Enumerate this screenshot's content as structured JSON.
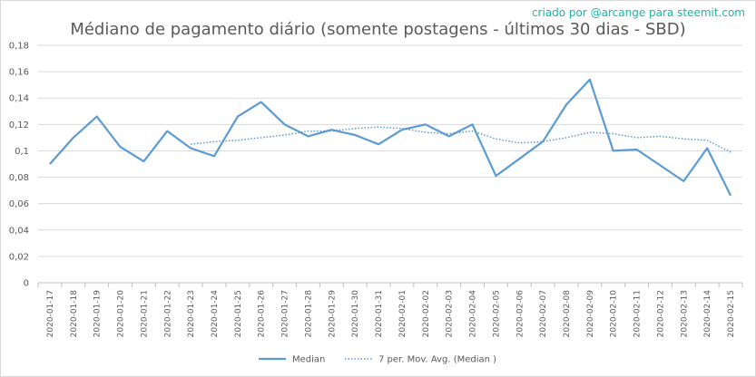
{
  "header": {
    "title": "Médiano de pagamento diário (somente postagens - últimos 30 dias - SBD)",
    "credit": "criado por @arcange para steemit.com"
  },
  "chart_data": {
    "type": "line",
    "title": "Médiano de pagamento diário (somente postagens - últimos 30 dias - SBD)",
    "xlabel": "",
    "ylabel": "",
    "ylim": [
      0,
      0.18
    ],
    "yticks": [
      "0",
      "0,02",
      "0,04",
      "0,06",
      "0,08",
      "0,1",
      "0,12",
      "0,14",
      "0,16",
      "0,18"
    ],
    "grid": true,
    "legend_position": "bottom",
    "categories": [
      "2020-01-17",
      "2020-01-18",
      "2020-01-19",
      "2020-01-20",
      "2020-01-21",
      "2020-01-22",
      "2020-01-23",
      "2020-01-24",
      "2020-01-25",
      "2020-01-26",
      "2020-01-27",
      "2020-01-28",
      "2020-01-29",
      "2020-01-30",
      "2020-01-31",
      "2020-02-01",
      "2020-02-02",
      "2020-02-03",
      "2020-02-04",
      "2020-02-05",
      "2020-02-06",
      "2020-02-07",
      "2020-02-08",
      "2020-02-09",
      "2020-02-10",
      "2020-02-11",
      "2020-02-12",
      "2020-02-13",
      "2020-02-14",
      "2020-02-15"
    ],
    "series": [
      {
        "name": "Median",
        "color": "#5b9bd5",
        "style": "solid",
        "values": [
          0.09,
          0.11,
          0.126,
          0.103,
          0.092,
          0.115,
          0.102,
          0.096,
          0.126,
          0.137,
          0.12,
          0.111,
          0.116,
          0.112,
          0.105,
          0.116,
          0.12,
          0.111,
          0.12,
          0.081,
          0.094,
          0.107,
          0.135,
          0.154,
          0.1,
          0.101,
          0.089,
          0.077,
          0.102,
          0.066
        ]
      },
      {
        "name": "7 per. Mov. Avg. (Median )",
        "color": "#5b9bd5",
        "style": "dotted",
        "values": [
          null,
          null,
          null,
          null,
          null,
          null,
          0.105,
          0.107,
          0.108,
          0.11,
          0.112,
          0.115,
          0.115,
          0.117,
          0.118,
          0.117,
          0.114,
          0.113,
          0.115,
          0.109,
          0.106,
          0.107,
          0.11,
          0.114,
          0.113,
          0.11,
          0.111,
          0.109,
          0.108,
          0.099
        ]
      }
    ]
  }
}
